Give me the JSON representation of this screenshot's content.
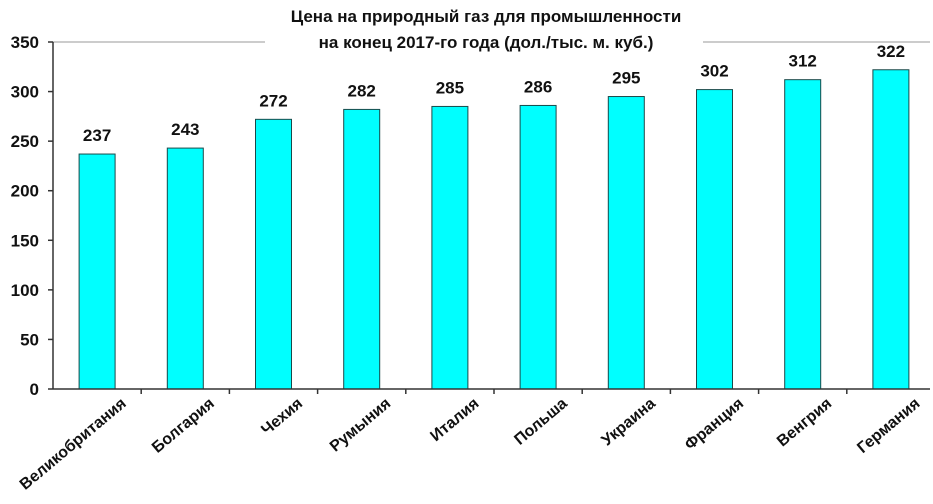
{
  "chart_data": {
    "type": "bar",
    "title": "Цена на природный газ для промышленности",
    "subtitle": "на конец 2017-го года (дол./тыс. м. куб.)",
    "xlabel": "",
    "ylabel": "",
    "ylim": [
      0,
      350
    ],
    "yticks": [
      0,
      50,
      100,
      150,
      200,
      250,
      300,
      350
    ],
    "categories": [
      "Великобритания",
      "Болгария",
      "Чехия",
      "Румыния",
      "Италия",
      "Польша",
      "Украина",
      "Франция",
      "Венгрия",
      "Германия"
    ],
    "values": [
      237,
      243,
      272,
      282,
      285,
      286,
      295,
      302,
      312,
      322
    ],
    "bar_color": "#00FFFF",
    "bar_edge_color": "#1a4a4a",
    "grid": false,
    "data_labels": true
  }
}
